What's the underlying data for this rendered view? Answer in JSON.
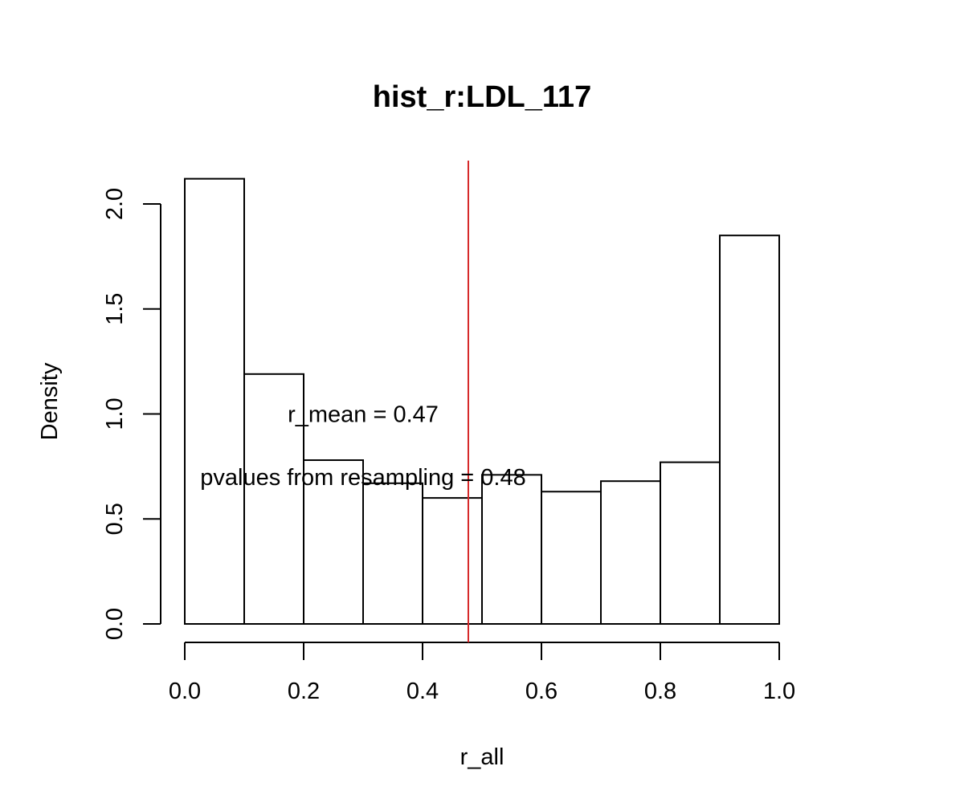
{
  "chart_data": {
    "type": "bar",
    "subtype": "histogram",
    "title": "hist_r:LDL_117",
    "xlabel": "r_all",
    "ylabel": "Density",
    "bins": [
      {
        "start": 0.0,
        "end": 0.1,
        "density": 2.12
      },
      {
        "start": 0.1,
        "end": 0.2,
        "density": 1.19
      },
      {
        "start": 0.2,
        "end": 0.3,
        "density": 0.78
      },
      {
        "start": 0.3,
        "end": 0.4,
        "density": 0.67
      },
      {
        "start": 0.4,
        "end": 0.5,
        "density": 0.6
      },
      {
        "start": 0.5,
        "end": 0.6,
        "density": 0.71
      },
      {
        "start": 0.6,
        "end": 0.7,
        "density": 0.63
      },
      {
        "start": 0.7,
        "end": 0.8,
        "density": 0.68
      },
      {
        "start": 0.8,
        "end": 0.9,
        "density": 0.77
      },
      {
        "start": 0.9,
        "end": 1.0,
        "density": 1.85
      }
    ],
    "xlim": [
      0.0,
      1.0
    ],
    "ylim": [
      0.0,
      2.0
    ],
    "xticks": [
      "0.0",
      "0.2",
      "0.4",
      "0.6",
      "0.8",
      "1.0"
    ],
    "yticks": [
      "0.0",
      "0.5",
      "1.0",
      "1.5",
      "2.0"
    ],
    "vline": {
      "x": 0.477,
      "color": "#d62728"
    },
    "annotations": [
      {
        "text": "r_mean = 0.47",
        "x": 0.3,
        "y": 1.0
      },
      {
        "text": "pvalues from resampling = 0.48",
        "x": 0.3,
        "y": 0.7
      }
    ],
    "grid": false,
    "legend": "none",
    "colors": {
      "bar_fill": "#ffffff",
      "bar_stroke": "#000000",
      "axis": "#000000"
    }
  }
}
